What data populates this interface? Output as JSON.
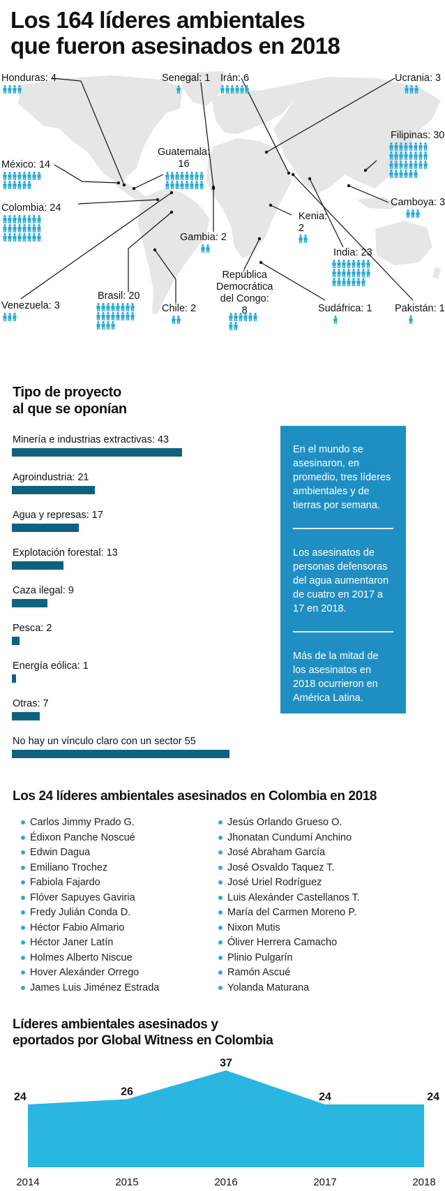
{
  "title_line1": "Los 164 líderes ambientales",
  "title_line2": "que fueron asesinados en 2018",
  "colors": {
    "dark_bar": "#10617f",
    "accent": "#29b6e0",
    "box": "#1f8fc3",
    "map": "#e6e6e6",
    "person": "#29a9d6"
  },
  "map": {
    "countries": [
      {
        "id": "honduras",
        "label": "Honduras: 4",
        "count": 4
      },
      {
        "id": "senegal",
        "label": "Senegal: 1",
        "count": 1
      },
      {
        "id": "iran",
        "label": "Irán: 6",
        "count": 6
      },
      {
        "id": "ucrania",
        "label": "Ucrania: 3",
        "count": 3
      },
      {
        "id": "filipinas",
        "label": "Filipinas: 30",
        "count": 30
      },
      {
        "id": "mexico",
        "label": "México: 14",
        "count": 14
      },
      {
        "id": "guatemala",
        "label": "Guatemala:\n16",
        "count": 16
      },
      {
        "id": "colombia",
        "label": "Colombia: 24",
        "count": 24
      },
      {
        "id": "camboya",
        "label": "Camboya: 3",
        "count": 3
      },
      {
        "id": "kenia",
        "label": "Kenia:\n2",
        "count": 2
      },
      {
        "id": "gambia",
        "label": "Gambia: 2",
        "count": 2
      },
      {
        "id": "india",
        "label": "India: 23",
        "count": 23
      },
      {
        "id": "rdc",
        "label": "República\nDemocrática\ndel Congo:\n8",
        "count": 8
      },
      {
        "id": "venezuela",
        "label": "Venezuela: 3",
        "count": 3
      },
      {
        "id": "brasil",
        "label": "Brasil: 20",
        "count": 20
      },
      {
        "id": "chile",
        "label": "Chile: 2",
        "count": 2
      },
      {
        "id": "sudafrica",
        "label": "Sudáfrica: 1",
        "count": 1
      },
      {
        "id": "pakistan",
        "label": "Pakistán: 1",
        "count": 1
      }
    ]
  },
  "projects": {
    "title_line1": "Tipo de proyecto",
    "title_line2": "al que se oponían",
    "max": 55,
    "items": [
      {
        "label": "Minería e industrias extractivas: 43",
        "value": 43
      },
      {
        "label": "Agroindustria: 21",
        "value": 21
      },
      {
        "label": "Agua y represas: 17",
        "value": 17
      },
      {
        "label": "Explotación forestal: 13",
        "value": 13
      },
      {
        "label": "Caza ilegal: 9",
        "value": 9
      },
      {
        "label": "Pesca: 2",
        "value": 2
      },
      {
        "label": "Energía eólica: 1",
        "value": 1
      },
      {
        "label": "Otras: 7",
        "value": 7
      },
      {
        "label": "No hay un vínculo claro con un sector 55",
        "value": 55
      }
    ]
  },
  "facts": [
    "En el mundo se asesinaron, en promedio, tres líderes ambientales y de tierras por semana.",
    "Los asesinatos de personas defensoras del agua aumentaron de cuatro en 2017 a 17 en 2018.",
    "Más de la mitad de los asesinatos en 2018 ocurrieron en América Latina."
  ],
  "colombia_names": {
    "title": "Los 24 líderes ambientales asesinados en Colombia en 2018",
    "left": [
      "Carlos Jimmy Prado G.",
      "Édixon Panche Noscué",
      "Edwin Dagua",
      "Emiliano Trochez",
      "Fabiola Fajardo",
      "Flóver Sapuyes Gaviria",
      "Fredy Julián Conda D.",
      "Héctor Fabio Almario",
      "Héctor Janer Latín",
      "Holmes Alberto Niscue",
      "Hover Alexánder Orrego",
      "James Luis Jiménez Estrada"
    ],
    "right": [
      "Jesús Orlando Grueso O.",
      "Jhonatan Cundumí Anchino",
      "José Abraham García",
      "José Osvaldo Taquez T.",
      "José Uriel Rodríguez",
      "Luis Alexánder Castellanos T.",
      "María del Carmen Moreno P.",
      "Nixon Mutis",
      "Óliver Herrera Camacho",
      "Plinio Pulgarín",
      "Ramón Ascué",
      "Yolanda Maturana"
    ]
  },
  "area_title_line1": "Líderes ambientales asesinados y",
  "area_title_line2": "eportados por Global Witness en Colombia",
  "chart_data": [
    {
      "type": "bar",
      "title": "Tipo de proyecto al que se oponían",
      "categories": [
        "Minería e industrias extractivas",
        "Agroindustria",
        "Agua y represas",
        "Explotación forestal",
        "Caza ilegal",
        "Pesca",
        "Energía eólica",
        "Otras",
        "No hay un vínculo claro con un sector"
      ],
      "values": [
        43,
        21,
        17,
        13,
        9,
        2,
        1,
        7,
        55
      ],
      "orientation": "horizontal"
    },
    {
      "type": "area",
      "title": "Líderes ambientales asesinados y eportados por Global Witness en Colombia",
      "x": [
        "2014",
        "2015",
        "2016",
        "2017",
        "2018"
      ],
      "values": [
        24,
        26,
        37,
        24,
        24
      ],
      "color": "#29b6e0"
    }
  ]
}
